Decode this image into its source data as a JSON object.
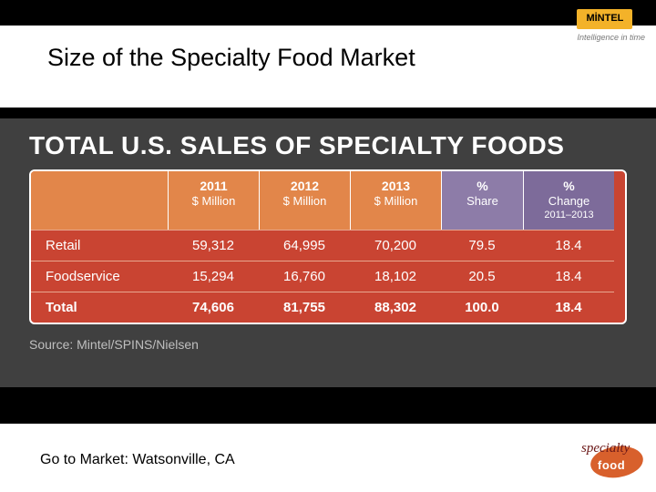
{
  "title": "Size of the Specialty Food Market",
  "brand_top": {
    "name": "MİNTEL",
    "tagline": "Intelligence in time"
  },
  "panel": {
    "heading": "TOTAL U.S. SALES OF SPECIALTY FOODS",
    "columns": [
      {
        "year": "",
        "sub": "",
        "bg": "orange"
      },
      {
        "year": "2011",
        "sub": "$ Million",
        "bg": "orange"
      },
      {
        "year": "2012",
        "sub": "$ Million",
        "bg": "orange"
      },
      {
        "year": "2013",
        "sub": "$ Million",
        "bg": "orange"
      },
      {
        "year": "%",
        "sub": "Share",
        "bg": "purple1"
      },
      {
        "year": "%",
        "sub": "Change",
        "tiny": "2011–2013",
        "bg": "purple2"
      }
    ],
    "rows": [
      {
        "label": "Retail",
        "v2011": "59,312",
        "v2012": "64,995",
        "v2013": "70,200",
        "share": "79.5",
        "change": "18.4"
      },
      {
        "label": "Foodservice",
        "v2011": "15,294",
        "v2012": "16,760",
        "v2013": "18,102",
        "share": "20.5",
        "change": "18.4"
      },
      {
        "label": "Total",
        "v2011": "74,606",
        "v2012": "81,755",
        "v2013": "88,302",
        "share": "100.0",
        "change": "18.4",
        "bold": true
      }
    ],
    "source": "Source: Mintel/SPINS/Nielsen",
    "colors": {
      "panel_bg": "#404040",
      "table_bg": "#c94432",
      "orange_header": "#e2864a",
      "purple_header1": "#8d7ca8",
      "purple_header2": "#7d6b9a",
      "row_divider": "#e8a68f",
      "text": "#ffffff",
      "source_text": "#bfbfbf"
    }
  },
  "footer": {
    "text": "Go to Market: Watsonville, CA",
    "logo": {
      "top_word": "specialty",
      "bottom_word": "food"
    }
  }
}
